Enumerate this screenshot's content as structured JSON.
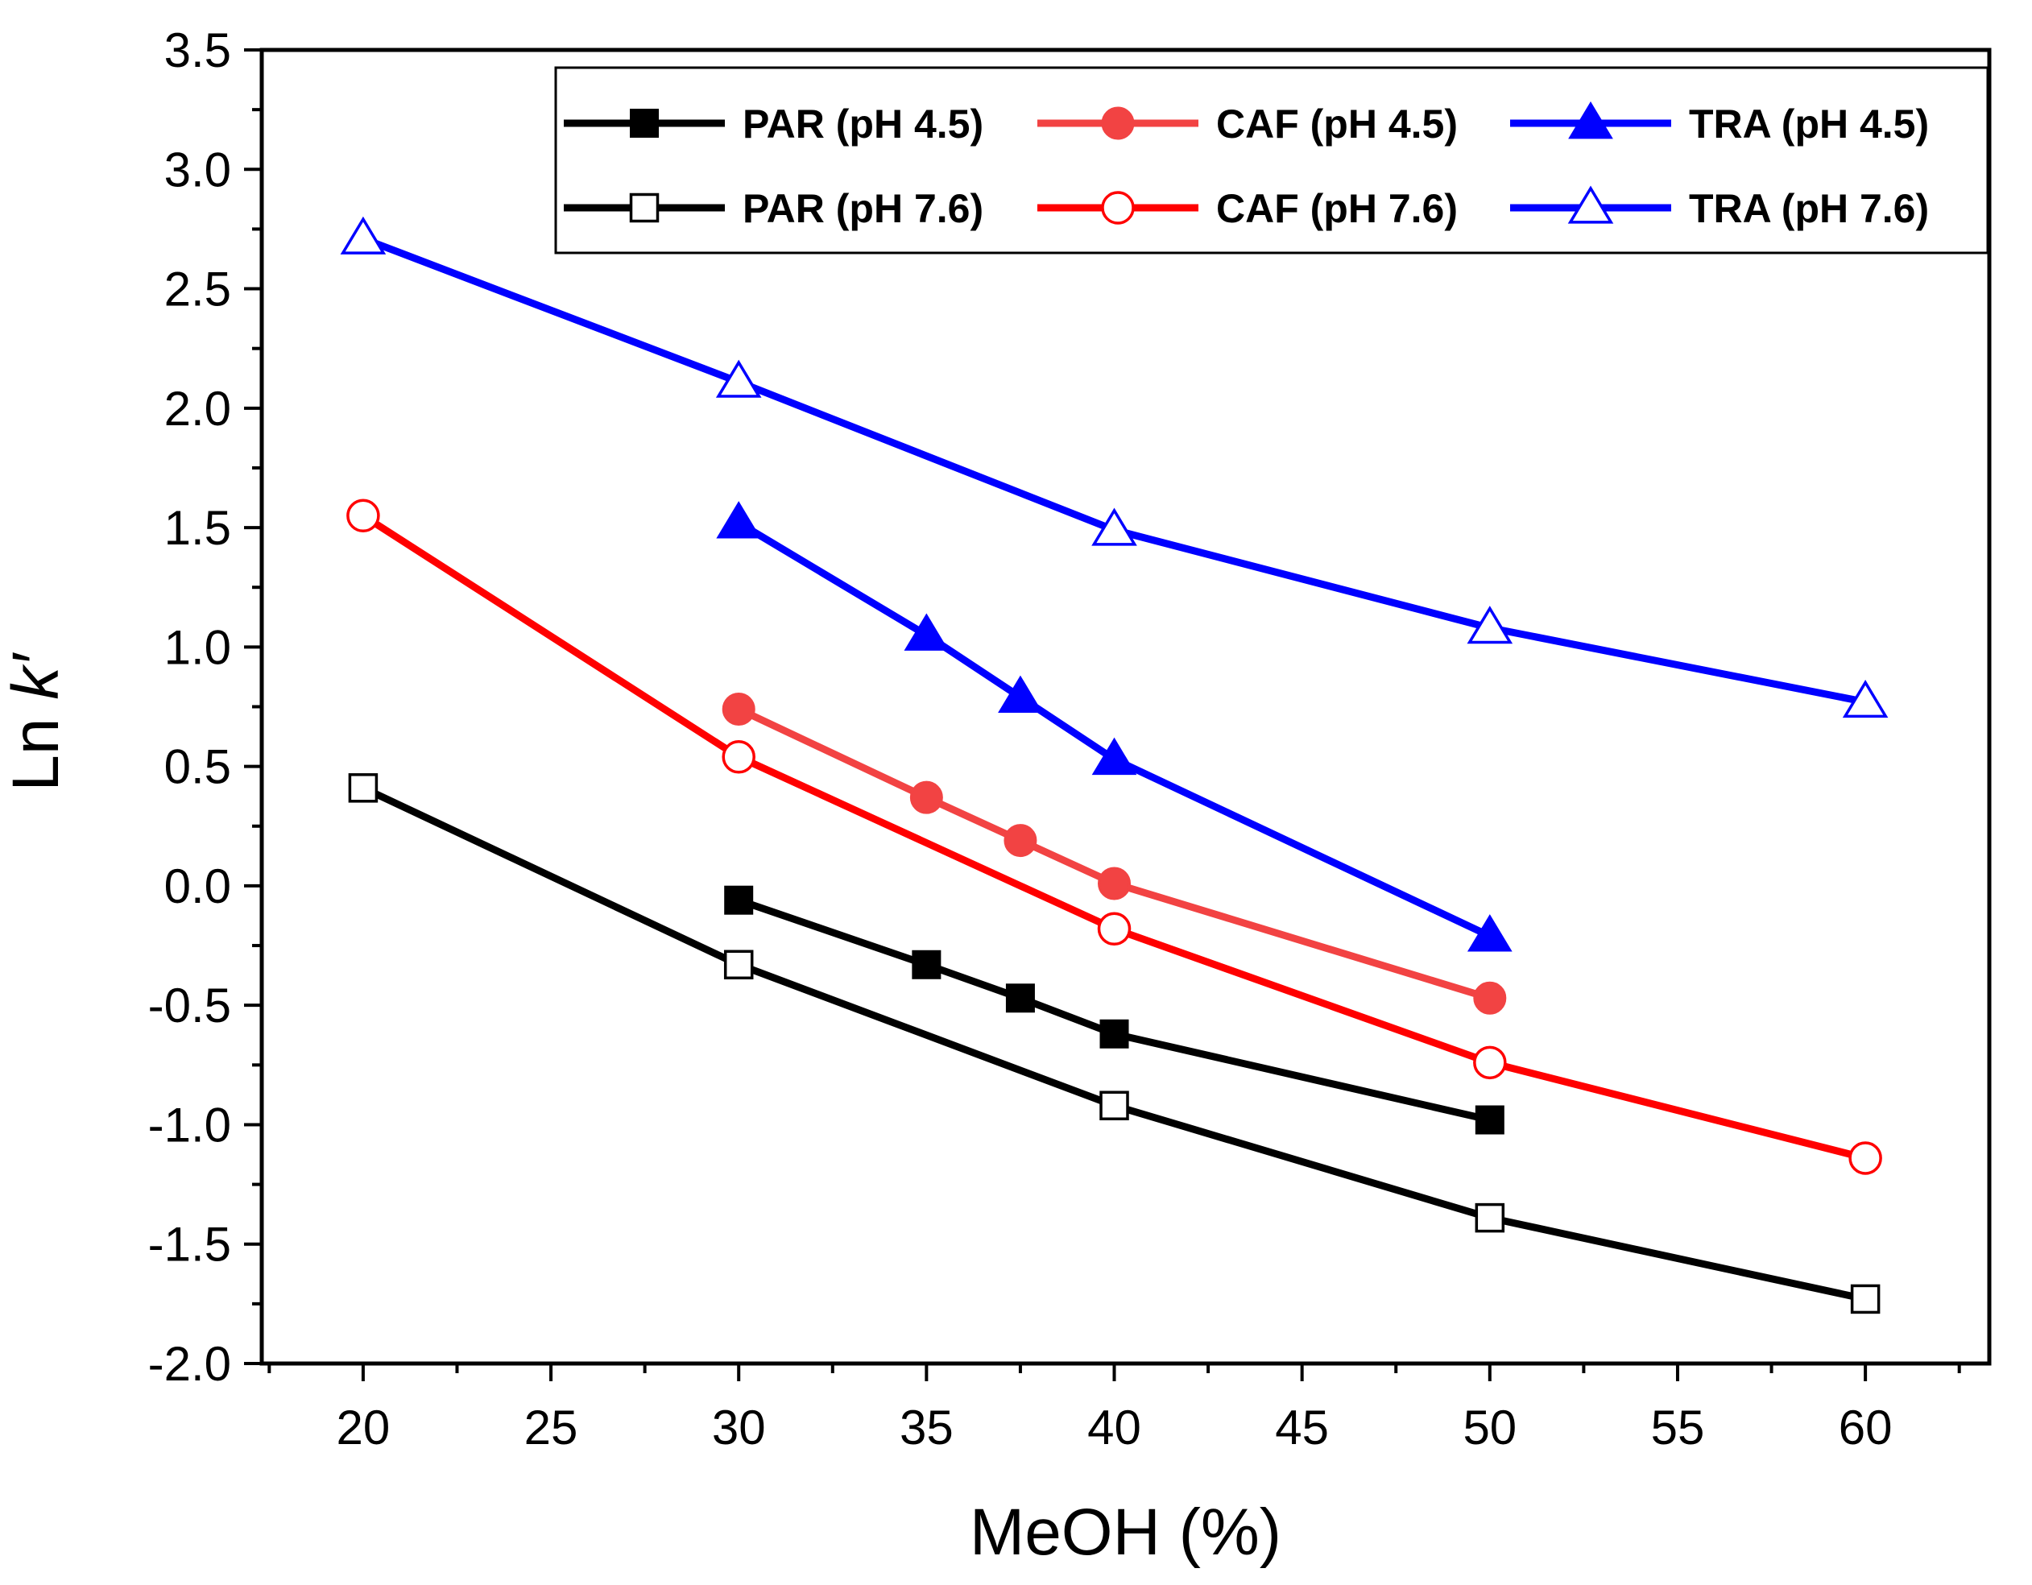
{
  "chart_data": {
    "type": "line",
    "title": "",
    "xlabel": "MeOH (%)",
    "ylabel_prefix": "Ln ",
    "ylabel_var": "k′",
    "xlim": [
      17.3,
      63.3
    ],
    "ylim": [
      -2.0,
      3.5
    ],
    "xticks": [
      20,
      25,
      30,
      35,
      40,
      45,
      50,
      55,
      60
    ],
    "yticks": [
      -2.0,
      -1.5,
      -1.0,
      -0.5,
      0.0,
      0.5,
      1.0,
      1.5,
      2.0,
      2.5,
      3.0,
      3.5
    ],
    "xtick_labels": [
      "20",
      "25",
      "30",
      "35",
      "40",
      "45",
      "50",
      "55",
      "60"
    ],
    "ytick_labels": [
      "-2.0",
      "-1.5",
      "-1.0",
      "-0.5",
      "0.0",
      "0.5",
      "1.0",
      "1.5",
      "2.0",
      "2.5",
      "3.0",
      "3.5"
    ],
    "grid": false,
    "legend_position": "top-right",
    "series": [
      {
        "name": "PAR (pH 4.5)",
        "color": "#000000",
        "marker": "square",
        "filled": true,
        "x": [
          30,
          35,
          37.5,
          40,
          50
        ],
        "y": [
          -0.06,
          -0.33,
          -0.47,
          -0.62,
          -0.98
        ]
      },
      {
        "name": "CAF (pH 4.5)",
        "color": "#f24343",
        "marker": "circle",
        "filled": true,
        "x": [
          30,
          35,
          37.5,
          40,
          50
        ],
        "y": [
          0.74,
          0.37,
          0.19,
          0.01,
          -0.47
        ]
      },
      {
        "name": "TRA  (pH 4.5)",
        "color": "#0000ff",
        "marker": "triangle",
        "filled": true,
        "x": [
          30,
          35,
          37.5,
          40,
          50
        ],
        "y": [
          1.52,
          1.05,
          0.79,
          0.53,
          -0.21
        ]
      },
      {
        "name": "PAR (pH 7.6)",
        "color": "#000000",
        "marker": "square",
        "filled": false,
        "x": [
          20,
          30,
          40,
          50,
          60
        ],
        "y": [
          0.41,
          -0.33,
          -0.92,
          -1.39,
          -1.73
        ]
      },
      {
        "name": "CAF (pH 7.6)",
        "color": "#ff0000",
        "marker": "circle",
        "filled": false,
        "x": [
          20,
          30,
          40,
          50,
          60
        ],
        "y": [
          1.55,
          0.54,
          -0.18,
          -0.74,
          -1.14
        ]
      },
      {
        "name": "TRA (pH 7.6)",
        "color": "#0000ff",
        "marker": "triangle",
        "filled": false,
        "x": [
          20,
          30,
          40,
          50,
          60
        ],
        "y": [
          2.71,
          2.11,
          1.49,
          1.08,
          0.77
        ]
      }
    ]
  }
}
